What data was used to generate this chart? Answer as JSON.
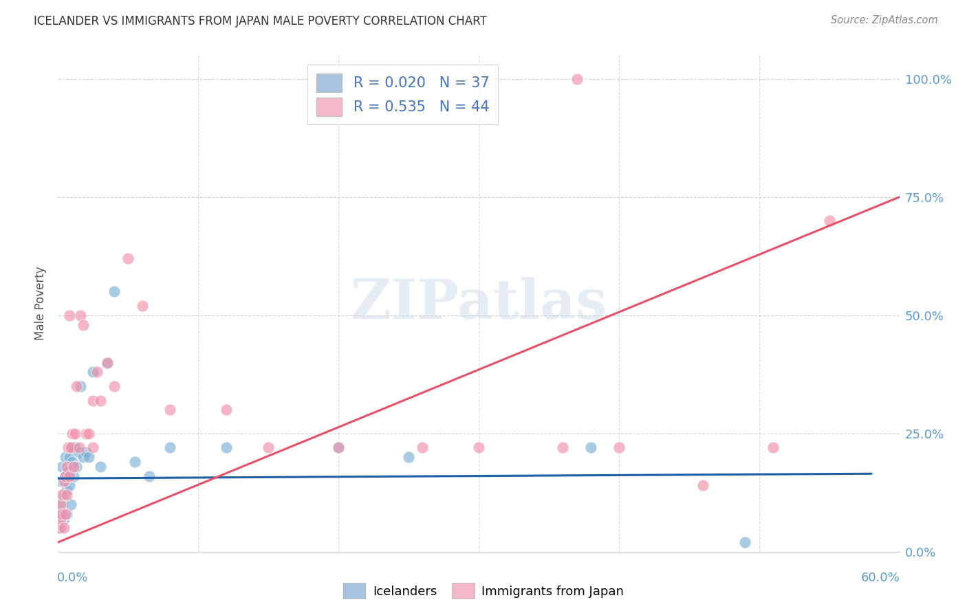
{
  "title": "ICELANDER VS IMMIGRANTS FROM JAPAN MALE POVERTY CORRELATION CHART",
  "source": "Source: ZipAtlas.com",
  "ylabel": "Male Poverty",
  "ytick_values": [
    0.0,
    0.25,
    0.5,
    0.75,
    1.0
  ],
  "xlim": [
    0.0,
    0.6
  ],
  "ylim": [
    0.0,
    1.05
  ],
  "legend1_label": "R = 0.020   N = 37",
  "legend2_label": "R = 0.535   N = 44",
  "legend_color_blue": "#a8c4e0",
  "legend_color_pink": "#f4b8c8",
  "scatter_color_blue": "#7bafd4",
  "scatter_color_pink": "#f090a8",
  "line_color_blue": "#1a5fa8",
  "line_color_pink": "#e8506a",
  "blue_line_x": [
    0.0,
    0.58
  ],
  "blue_line_y": [
    0.155,
    0.165
  ],
  "pink_line_x": [
    0.0,
    0.6
  ],
  "pink_line_y": [
    0.02,
    0.75
  ],
  "icelanders_x": [
    0.001,
    0.002,
    0.002,
    0.003,
    0.003,
    0.004,
    0.004,
    0.005,
    0.005,
    0.006,
    0.006,
    0.007,
    0.008,
    0.008,
    0.009,
    0.01,
    0.01,
    0.011,
    0.012,
    0.013,
    0.015,
    0.016,
    0.018,
    0.02,
    0.022,
    0.025,
    0.03,
    0.035,
    0.04,
    0.055,
    0.065,
    0.08,
    0.12,
    0.2,
    0.25,
    0.38,
    0.49
  ],
  "icelanders_y": [
    0.08,
    0.15,
    0.05,
    0.1,
    0.18,
    0.12,
    0.07,
    0.16,
    0.2,
    0.13,
    0.08,
    0.17,
    0.2,
    0.14,
    0.1,
    0.19,
    0.22,
    0.16,
    0.22,
    0.18,
    0.21,
    0.35,
    0.2,
    0.21,
    0.2,
    0.38,
    0.18,
    0.4,
    0.55,
    0.19,
    0.16,
    0.22,
    0.22,
    0.22,
    0.2,
    0.22,
    0.02
  ],
  "japan_x": [
    0.001,
    0.002,
    0.002,
    0.003,
    0.003,
    0.004,
    0.004,
    0.005,
    0.005,
    0.006,
    0.006,
    0.007,
    0.008,
    0.008,
    0.009,
    0.01,
    0.011,
    0.012,
    0.013,
    0.015,
    0.016,
    0.018,
    0.02,
    0.022,
    0.025,
    0.025,
    0.028,
    0.03,
    0.035,
    0.04,
    0.05,
    0.06,
    0.08,
    0.12,
    0.15,
    0.2,
    0.26,
    0.3,
    0.36,
    0.37,
    0.4,
    0.46,
    0.51,
    0.55
  ],
  "japan_y": [
    0.05,
    0.1,
    0.07,
    0.08,
    0.12,
    0.15,
    0.05,
    0.16,
    0.08,
    0.18,
    0.12,
    0.22,
    0.16,
    0.5,
    0.22,
    0.25,
    0.18,
    0.25,
    0.35,
    0.22,
    0.5,
    0.48,
    0.25,
    0.25,
    0.32,
    0.22,
    0.38,
    0.32,
    0.4,
    0.35,
    0.62,
    0.52,
    0.3,
    0.3,
    0.22,
    0.22,
    0.22,
    0.22,
    0.22,
    1.0,
    0.22,
    0.14,
    0.22,
    0.7
  ]
}
